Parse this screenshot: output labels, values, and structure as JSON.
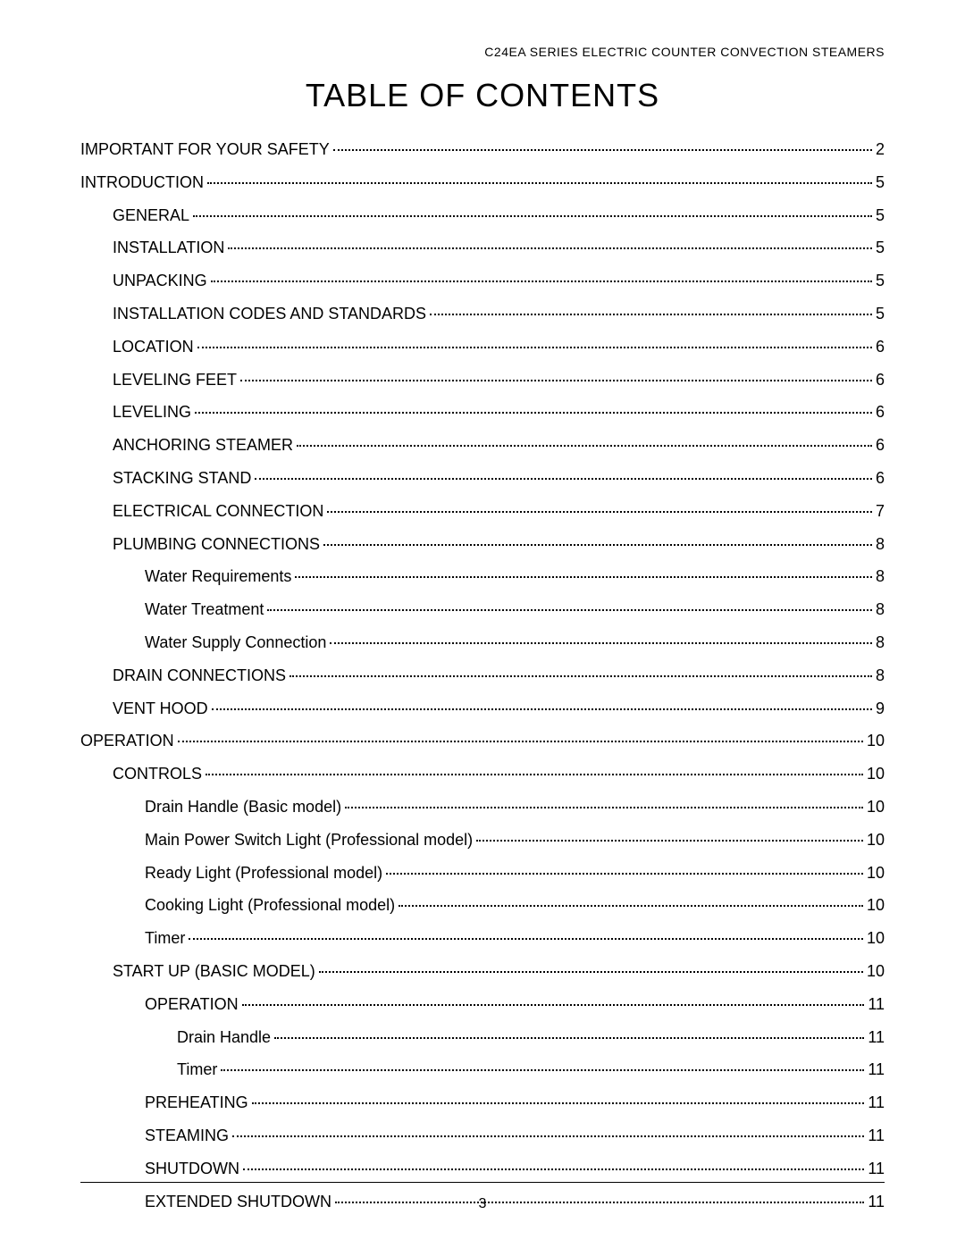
{
  "header": "C24EA SERIES ELECTRIC COUNTER CONVECTION STEAMERS",
  "title": "TABLE OF CONTENTS",
  "footer_page": "3",
  "colors": {
    "background": "#ffffff",
    "text": "#000000",
    "rule": "#000000"
  },
  "typography": {
    "header_fontsize": 14,
    "title_fontsize": 36,
    "entry_fontsize": 18,
    "footer_fontsize": 16,
    "font_family": "Arial, Helvetica, sans-serif"
  },
  "toc": [
    {
      "label": "IMPORTANT FOR YOUR SAFETY",
      "page": "2",
      "indent": 0
    },
    {
      "label": "INTRODUCTION",
      "page": "5",
      "indent": 0
    },
    {
      "label": "GENERAL",
      "page": "5",
      "indent": 1
    },
    {
      "label": "INSTALLATION",
      "page": "5",
      "indent": 1
    },
    {
      "label": "UNPACKING",
      "page": "5",
      "indent": 1
    },
    {
      "label": "INSTALLATION CODES AND STANDARDS",
      "page": "5",
      "indent": 1
    },
    {
      "label": "LOCATION",
      "page": "6",
      "indent": 1
    },
    {
      "label": "LEVELING FEET",
      "page": "6",
      "indent": 1
    },
    {
      "label": "LEVELING",
      "page": "6",
      "indent": 1
    },
    {
      "label": "ANCHORING STEAMER",
      "page": "6",
      "indent": 1
    },
    {
      "label": "STACKING STAND",
      "page": "6",
      "indent": 1
    },
    {
      "label": "ELECTRICAL CONNECTION",
      "page": "7",
      "indent": 1
    },
    {
      "label": "PLUMBING CONNECTIONS",
      "page": "8",
      "indent": 1
    },
    {
      "label": "Water Requirements",
      "page": "8",
      "indent": 2
    },
    {
      "label": "Water Treatment",
      "page": "8",
      "indent": 2
    },
    {
      "label": "Water Supply Connection",
      "page": "8",
      "indent": 2
    },
    {
      "label": "DRAIN CONNECTIONS",
      "page": "8",
      "indent": 1
    },
    {
      "label": "VENT HOOD",
      "page": "9",
      "indent": 1
    },
    {
      "label": "OPERATION",
      "page": "10",
      "indent": 0
    },
    {
      "label": "CONTROLS",
      "page": "10",
      "indent": 1
    },
    {
      "label": "Drain Handle (Basic model)",
      "page": "10",
      "indent": 2
    },
    {
      "label": "Main Power Switch Light (Professional model)",
      "page": "10",
      "indent": 2
    },
    {
      "label": "Ready Light (Professional model)",
      "page": "10",
      "indent": 2
    },
    {
      "label": "Cooking Light (Professional model)",
      "page": "10",
      "indent": 2
    },
    {
      "label": "Timer",
      "page": "10",
      "indent": 2
    },
    {
      "label": "START UP (BASIC MODEL)",
      "page": "10",
      "indent": 1
    },
    {
      "label": "OPERATION",
      "page": "11",
      "indent": 2
    },
    {
      "label": "Drain Handle",
      "page": "11",
      "indent": 3
    },
    {
      "label": "Timer",
      "page": "11",
      "indent": 3
    },
    {
      "label": "PREHEATING",
      "page": "11",
      "indent": 2
    },
    {
      "label": "STEAMING",
      "page": "11",
      "indent": 2
    },
    {
      "label": "SHUTDOWN",
      "page": "11",
      "indent": 2
    },
    {
      "label": "EXTENDED SHUTDOWN",
      "page": "11",
      "indent": 2
    }
  ]
}
